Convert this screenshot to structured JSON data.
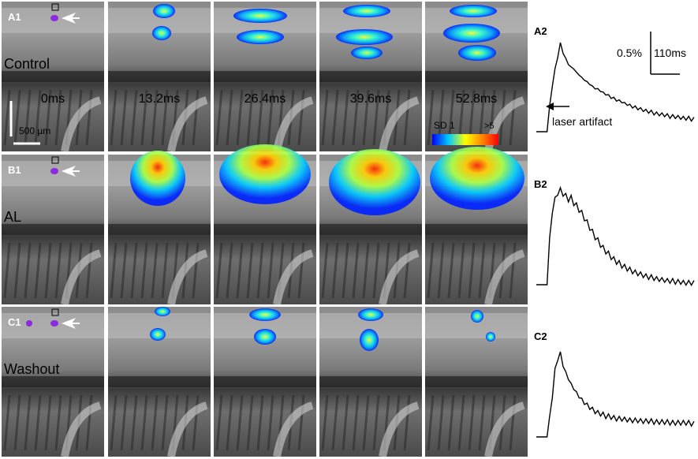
{
  "rows": [
    {
      "panel_label": "A1",
      "condition": "Control",
      "trace_label": "A2",
      "trace": [
        0,
        0,
        0,
        0,
        0,
        0.3,
        0.55,
        0.7,
        0.88,
        1.0,
        0.93,
        0.82,
        0.8,
        0.72,
        0.75,
        0.66,
        0.68,
        0.6,
        0.62,
        0.55,
        0.57,
        0.5,
        0.52,
        0.47,
        0.49,
        0.43,
        0.45,
        0.4,
        0.41,
        0.37,
        0.38,
        0.34,
        0.36,
        0.31,
        0.33,
        0.29,
        0.3,
        0.27,
        0.28,
        0.25,
        0.26,
        0.23,
        0.24,
        0.22,
        0.22,
        0.2,
        0.21,
        0.19,
        0.2,
        0.18,
        0.18,
        0.17,
        0.18,
        0.16,
        0.17,
        0.15,
        0.16,
        0.15,
        0.15,
        0.14
      ],
      "frames": [
        {
          "time": "0ms"
        },
        {
          "time": "13.2ms"
        },
        {
          "time": "26.4ms"
        },
        {
          "time": "39.6ms"
        },
        {
          "time": "52.8ms"
        }
      ]
    },
    {
      "panel_label": "B1",
      "condition": "AL",
      "trace_label": "B2",
      "trace": [
        0,
        0,
        0,
        0,
        0,
        0.5,
        0.78,
        0.9,
        0.97,
        1.0,
        0.96,
        0.94,
        0.9,
        0.92,
        0.86,
        0.84,
        0.79,
        0.76,
        0.7,
        0.66,
        0.6,
        0.56,
        0.5,
        0.47,
        0.42,
        0.39,
        0.35,
        0.33,
        0.29,
        0.27,
        0.24,
        0.23,
        0.2,
        0.19,
        0.17,
        0.16,
        0.14,
        0.13,
        0.12,
        0.11,
        0.1,
        0.09,
        0.08,
        0.08,
        0.07,
        0.06,
        0.06,
        0.05,
        0.05,
        0.04,
        0.04,
        0.04,
        0.03,
        0.03,
        0.03,
        0.02,
        0.02,
        0.02,
        0.02,
        0.02
      ]
    },
    {
      "panel_label": "C1",
      "condition": "Washout",
      "trace_label": "C2",
      "trace": [
        0,
        0,
        0,
        0,
        0,
        0.25,
        0.5,
        0.8,
        0.95,
        1.0,
        0.88,
        0.76,
        0.72,
        0.62,
        0.6,
        0.52,
        0.5,
        0.44,
        0.42,
        0.38,
        0.36,
        0.33,
        0.31,
        0.29,
        0.28,
        0.27,
        0.25,
        0.25,
        0.24,
        0.23,
        0.22,
        0.22,
        0.22,
        0.21,
        0.21,
        0.2,
        0.2,
        0.2,
        0.2,
        0.19,
        0.19,
        0.19,
        0.19,
        0.19,
        0.18,
        0.18,
        0.18,
        0.18,
        0.18,
        0.18,
        0.17,
        0.17,
        0.17,
        0.17,
        0.17,
        0.17,
        0.17,
        0.17,
        0.16,
        0.16
      ]
    }
  ],
  "scale_bar": {
    "label": "500 µm"
  },
  "colorbar": {
    "min_label": "SD 1",
    "max_label": ">5"
  },
  "trace_scale": {
    "amplitude": "0.5%",
    "time": "110ms"
  },
  "annotation": {
    "text": "laser artifact"
  },
  "colors": {
    "trace": "#000000",
    "arrow": "#ffffff",
    "stim": "#8a2be2"
  }
}
